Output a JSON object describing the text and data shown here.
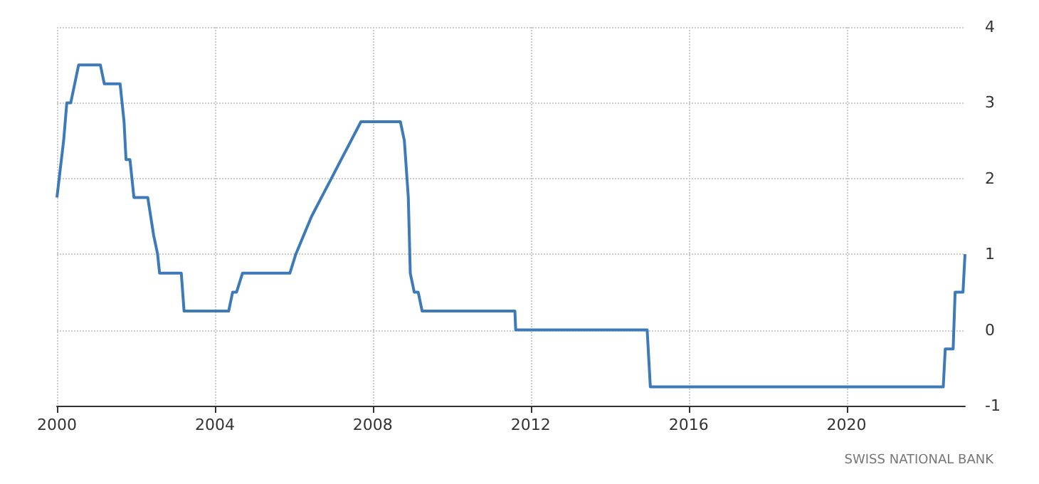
{
  "chart_data": {
    "type": "line",
    "x": [
      2000.0,
      2000.17,
      2000.25,
      2000.35,
      2000.45,
      2000.55,
      2001.1,
      2001.2,
      2001.6,
      2001.7,
      2001.75,
      2001.85,
      2001.95,
      2002.3,
      2002.45,
      2002.55,
      2002.6,
      2003.15,
      2003.22,
      2004.35,
      2004.45,
      2004.55,
      2004.7,
      2005.9,
      2006.05,
      2006.25,
      2006.45,
      2006.7,
      2006.95,
      2007.2,
      2007.45,
      2007.7,
      2008.7,
      2008.8,
      2008.9,
      2008.95,
      2009.05,
      2009.15,
      2009.25,
      2011.6,
      2011.62,
      2014.95,
      2015.03,
      2022.45,
      2022.5,
      2022.7,
      2022.75,
      2022.95,
      2023.0
    ],
    "series": [
      {
        "color": "#3d7ab8",
        "values": [
          1.75,
          2.5,
          3.0,
          3.0,
          3.25,
          3.5,
          3.5,
          3.25,
          3.25,
          2.75,
          2.25,
          2.25,
          1.75,
          1.75,
          1.25,
          1.0,
          0.75,
          0.75,
          0.25,
          0.25,
          0.5,
          0.5,
          0.75,
          0.75,
          1.0,
          1.25,
          1.5,
          1.75,
          2.0,
          2.25,
          2.5,
          2.75,
          2.75,
          2.5,
          1.75,
          0.75,
          0.5,
          0.5,
          0.25,
          0.25,
          0.0,
          0.0,
          -0.75,
          -0.75,
          -0.25,
          -0.25,
          0.5,
          0.5,
          1.0
        ]
      }
    ],
    "xlim": [
      2000,
      2023
    ],
    "xticks": [
      2000,
      2004,
      2008,
      2012,
      2016,
      2020
    ],
    "ylim": [
      -1,
      4
    ],
    "yticks": [
      -1,
      0,
      1,
      2,
      3,
      4
    ],
    "grid": true,
    "marker": "none",
    "line_style": "solid",
    "annotations": [
      "SWISS NATIONAL BANK"
    ]
  }
}
